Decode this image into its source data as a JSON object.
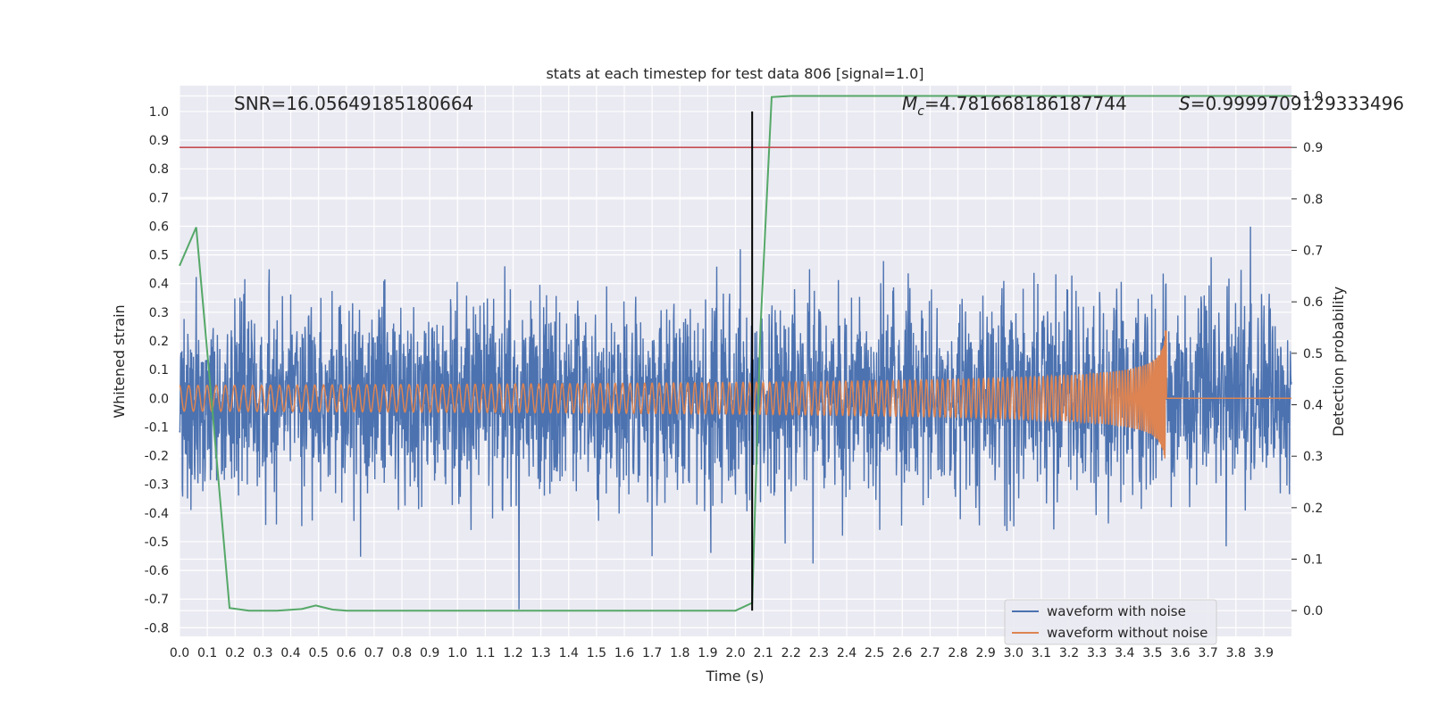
{
  "chart_data": {
    "type": "line",
    "title": "stats at each timestep for test data 806 [signal=1.0]",
    "xlabel": "Time (s)",
    "ylabel": "Whitened strain",
    "y2label": "Detection probability",
    "xlim": [
      0.0,
      4.0
    ],
    "ylim": [
      -0.83,
      1.09
    ],
    "y2lim": [
      -0.05,
      1.02
    ],
    "xticks": [
      "0.0",
      "0.1",
      "0.2",
      "0.3",
      "0.4",
      "0.5",
      "0.6",
      "0.7",
      "0.8",
      "0.9",
      "1.0",
      "1.1",
      "1.2",
      "1.3",
      "1.4",
      "1.5",
      "1.6",
      "1.7",
      "1.8",
      "1.9",
      "2.0",
      "2.1",
      "2.2",
      "2.3",
      "2.4",
      "2.5",
      "2.6",
      "2.7",
      "2.8",
      "2.9",
      "3.0",
      "3.1",
      "3.2",
      "3.3",
      "3.4",
      "3.5",
      "3.6",
      "3.7",
      "3.8",
      "3.9"
    ],
    "yticks": [
      "1.0",
      "0.9",
      "0.8",
      "0.7",
      "0.6",
      "0.5",
      "0.4",
      "0.3",
      "0.2",
      "0.1",
      "0.0",
      "-0.1",
      "-0.2",
      "-0.3",
      "-0.4",
      "-0.5",
      "-0.6",
      "-0.7",
      "-0.8"
    ],
    "y2ticks": [
      "1.0",
      "0.9",
      "0.8",
      "0.7",
      "0.6",
      "0.5",
      "0.4",
      "0.3",
      "0.2",
      "0.1",
      "0.0"
    ],
    "grid": true,
    "legend_position": "bottom-right",
    "annotations": {
      "snr": "SNR=16.05649185180664",
      "mc_symbol": "M",
      "mc_sub": "c",
      "mc_value": "=4.781668186187744",
      "s_symbol": "S",
      "s_value": "=0.9999709129333496"
    },
    "vline_x": 2.06,
    "hline_y2": 0.9,
    "series": [
      {
        "name": "waveform with noise",
        "color": "#4c72b0",
        "description": "noisy strain, approx. std 0.17 over 0.0–4.0 s"
      },
      {
        "name": "waveform without noise",
        "color": "#dd8452",
        "chirp": {
          "amp_start": 0.045,
          "amp_end": 0.3,
          "t_merge": 3.55
        }
      },
      {
        "color": "#55a868",
        "axis": "right",
        "x": [
          0.0,
          0.06,
          0.12,
          0.18,
          0.25,
          0.35,
          0.44,
          0.49,
          0.55,
          0.6,
          1.0,
          1.5,
          2.0,
          2.06,
          2.09,
          2.13,
          2.2,
          2.6,
          3.0,
          3.5,
          3.9,
          4.0
        ],
        "values": [
          0.67,
          0.745,
          0.38,
          0.005,
          0.0,
          0.0,
          0.003,
          0.01,
          0.002,
          0.0,
          0.0,
          0.0,
          0.0,
          0.015,
          0.55,
          0.998,
          1.0,
          1.0,
          1.0,
          1.0,
          1.0,
          1.0
        ]
      }
    ]
  }
}
